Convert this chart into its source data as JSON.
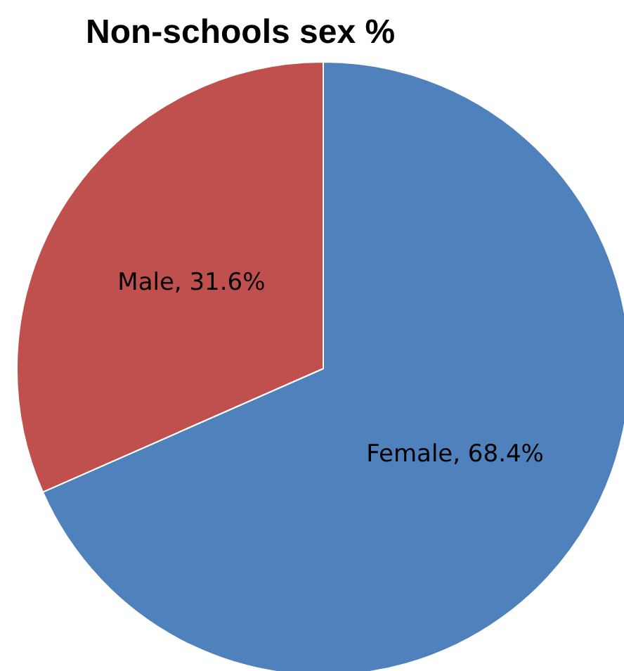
{
  "chart_data": {
    "type": "pie",
    "title": "Non-schools sex %",
    "categories": [
      "Female",
      "Male"
    ],
    "values": [
      68.4,
      31.6
    ],
    "colors": [
      "#4f81bd",
      "#c0504d"
    ],
    "value_labels": [
      "68.4%",
      "31.6%"
    ],
    "legend": false
  }
}
